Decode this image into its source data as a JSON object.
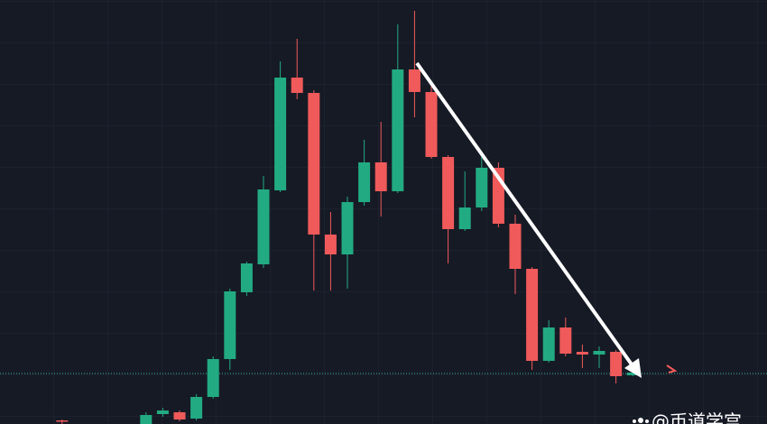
{
  "chart_data": {
    "type": "candlestick",
    "up_color": "#22ab82",
    "down_color": "#f05a5a",
    "xlim": [
      -3.7,
      42
    ],
    "ylim": [
      0,
      470
    ],
    "price_line": 56,
    "price_line_color": "#2fb8a0",
    "x": [
      0,
      5,
      6,
      7,
      8,
      9,
      10,
      11,
      12,
      13,
      14,
      15,
      16,
      17,
      18,
      19,
      20,
      21,
      22,
      23,
      24,
      25,
      26,
      27,
      28,
      29,
      30,
      31,
      32,
      33,
      34
    ],
    "open": [
      4,
      0,
      11,
      13,
      6,
      30,
      72,
      146,
      177,
      259,
      384,
      367,
      210,
      188,
      246,
      290,
      258,
      393,
      368,
      296,
      216,
      240,
      284,
      222,
      172,
      70,
      107,
      80,
      77,
      80,
      54
    ],
    "high": [
      5,
      13,
      18,
      15,
      33,
      75,
      150,
      180,
      275,
      402,
      427,
      370,
      235,
      252,
      315,
      335,
      443,
      458,
      375,
      298,
      280,
      298,
      290,
      232,
      174,
      115,
      118,
      88,
      86,
      82,
      58
    ],
    "low": [
      0,
      0,
      8,
      3,
      4,
      28,
      60,
      142,
      173,
      257,
      360,
      148,
      148,
      150,
      242,
      230,
      256,
      340,
      294,
      178,
      214,
      236,
      218,
      144,
      60,
      68,
      75,
      62,
      62,
      45,
      53
    ],
    "close": [
      3,
      10,
      15,
      5,
      30,
      72,
      147,
      178,
      260,
      384,
      367,
      210,
      188,
      246,
      290,
      258,
      393,
      368,
      296,
      216,
      240,
      284,
      222,
      172,
      70,
      107,
      78,
      77,
      81,
      53,
      57
    ]
  },
  "watermark": "@币道学宫"
}
